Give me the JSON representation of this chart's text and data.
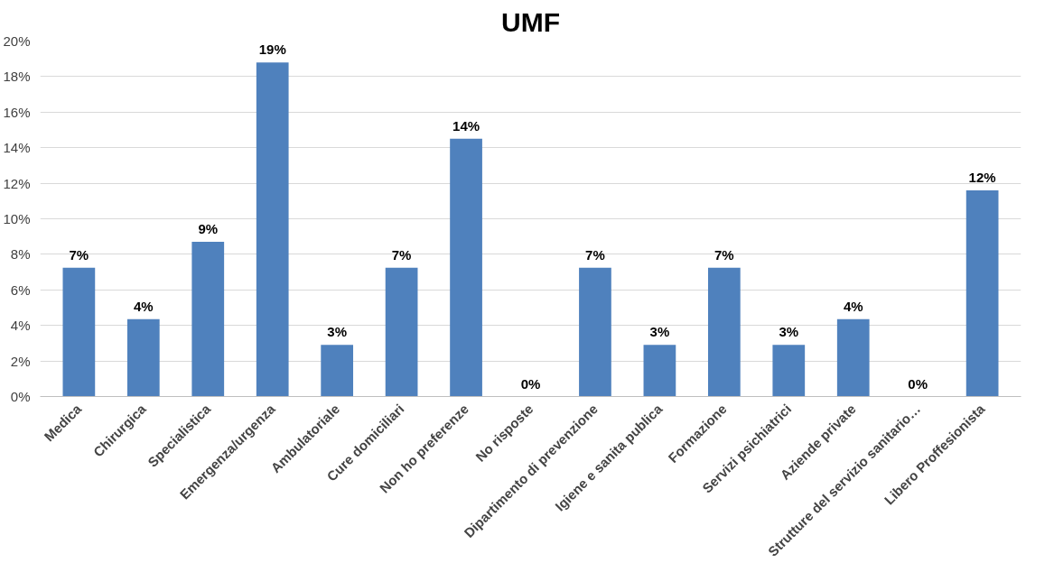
{
  "chart_data": {
    "type": "bar",
    "title": "UMF",
    "categories": [
      "Medica",
      "Chirurgica",
      "Specialistica",
      "Emergenza/urgenza",
      "Ambulatoriale",
      "Cure domiciliari",
      "Non ho preferenze",
      "No risposte",
      "Dipartimento di prevenzione",
      "Igiene e sanita publica",
      "Formazione",
      "Servizi psichiatrici",
      "Aziende private",
      "Strutture del servizio sanitario…",
      "Libero Proffesionista"
    ],
    "values": [
      7.25,
      4.35,
      8.7,
      18.8,
      2.9,
      7.25,
      14.5,
      0,
      7.25,
      2.9,
      7.25,
      2.9,
      4.35,
      0,
      11.6
    ],
    "value_labels": [
      "7%",
      "4%",
      "9%",
      "19%",
      "3%",
      "7%",
      "14%",
      "0%",
      "7%",
      "3%",
      "7%",
      "3%",
      "4%",
      "0%",
      "12%"
    ],
    "color": "#4f81bd",
    "ylim": [
      0,
      20
    ],
    "yticks": [
      {
        "value": 0,
        "label": "0%"
      },
      {
        "value": 2,
        "label": "2%"
      },
      {
        "value": 4,
        "label": "4%"
      },
      {
        "value": 6,
        "label": "6%"
      },
      {
        "value": 8,
        "label": "8%"
      },
      {
        "value": 10,
        "label": "10%"
      },
      {
        "value": 12,
        "label": "12%"
      },
      {
        "value": 14,
        "label": "14%"
      },
      {
        "value": 16,
        "label": "16%"
      },
      {
        "value": 18,
        "label": "18%"
      },
      {
        "value": 20,
        "label": "20%"
      }
    ],
    "grid": "y"
  }
}
